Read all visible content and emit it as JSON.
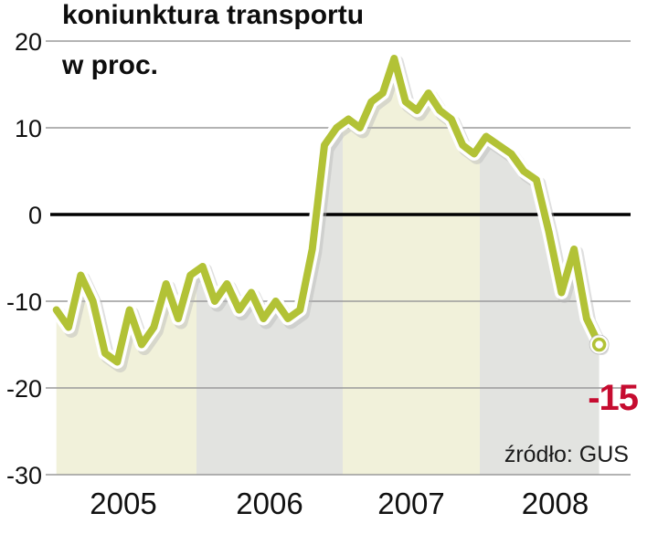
{
  "header": {
    "title": "koniunktura transportu",
    "subtitle": "w proc."
  },
  "annotations": {
    "end_label": "-15",
    "source": "źródło: GUS"
  },
  "chart_data": {
    "type": "line",
    "title": "koniunktura transportu",
    "ylabel": "w proc.",
    "source": "źródło: GUS",
    "x_years": [
      "2005",
      "2006",
      "2007",
      "2008"
    ],
    "y_ticks": [
      20,
      10,
      0,
      -10,
      -20,
      -30
    ],
    "ylim": [
      -30,
      20
    ],
    "grid": true,
    "points_per_year": [
      12,
      12,
      12,
      10
    ],
    "series": [
      {
        "name": "koniunktura transportu (proc.)",
        "values": [
          -11,
          -13,
          -7,
          -10,
          -16,
          -17,
          -11,
          -15,
          -13,
          -8,
          -12,
          -7,
          -6,
          -10,
          -8,
          -11,
          -9,
          -12,
          -10,
          -12,
          -11,
          -4,
          8,
          10,
          11,
          10,
          13,
          14,
          18,
          13,
          12,
          14,
          12,
          11,
          8,
          7,
          9,
          8,
          7,
          5,
          4,
          -2,
          -9,
          -4,
          -12,
          -15
        ]
      }
    ],
    "end_value": -15,
    "colors": {
      "line": "#b2c236",
      "line_casing": "#ffffff",
      "shadow": "#b9b9b9",
      "band_light": "#f1f1da",
      "band_gray": "#e2e3e0",
      "grid": "#9a9a9a",
      "zero_line": "#000000",
      "tick_text": "#111111",
      "end_label": "#c60c30"
    }
  }
}
